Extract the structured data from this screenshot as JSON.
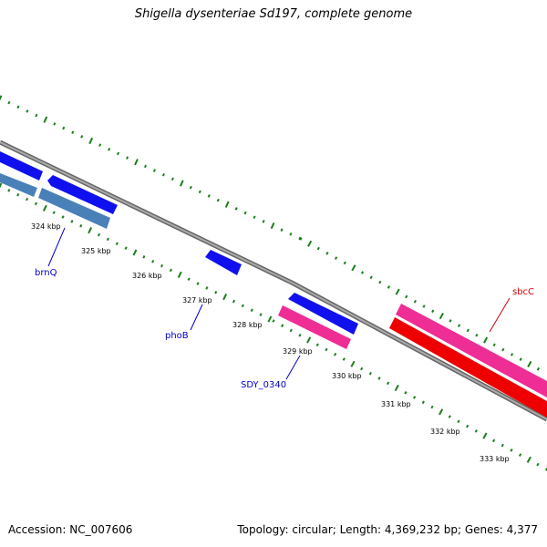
{
  "title": "Shigella dysenteriae Sd197, complete genome",
  "footer": {
    "accession": "Accession: NC_007606",
    "summary": "Topology: circular; Length: 4,369,232 bp; Genes: 4,377"
  },
  "colors": {
    "backbone": "#888888",
    "tick": "#1a7f1a",
    "gene_forward_blue": "#1010ee",
    "gene_reverse_steelblue": "#4a80b8",
    "gene_pink": "#ee2d95",
    "gene_red": "#ee0000",
    "label_blue": "#0000cc",
    "label_red": "#cc0000"
  },
  "kbp_labels": [
    "324 kbp",
    "325 kbp",
    "326 kbp",
    "327 kbp",
    "328 kbp",
    "329 kbp",
    "330 kbp",
    "331 kbp",
    "332 kbp",
    "333 kbp"
  ],
  "genes": [
    {
      "label": "brnQ",
      "color": "blue"
    },
    {
      "label": "phoB",
      "color": "blue"
    },
    {
      "label": "SDY_0340",
      "color": "blue"
    },
    {
      "label": "sbcC",
      "color": "red"
    }
  ]
}
